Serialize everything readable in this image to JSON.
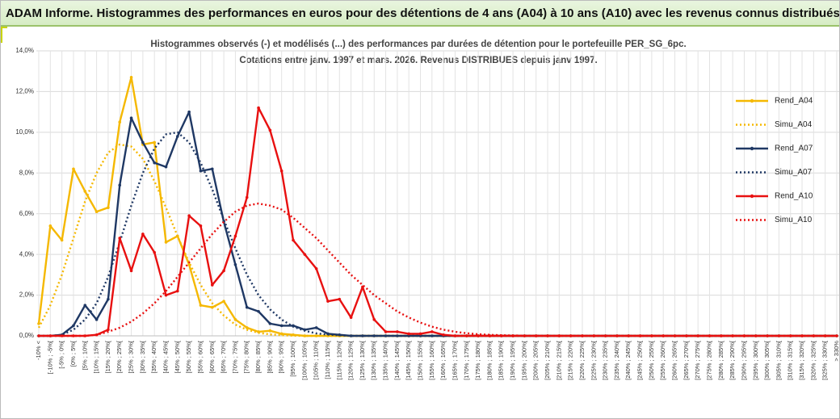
{
  "chart_data": {
    "type": "line",
    "title": "ADAM Informe. Histogrammes des performances en euros pour des détentions de 4 ans (A04) à 10 ans (A10) avec les revenus connus distribués",
    "subtitle": [
      "Histogrammes observés (-) et modélisés (...) des performances par durées de détention pour le portefeuille PER_SG_6pc.",
      "Cotations entre janv. 1997 et mars. 2026. Revenus DISTRIBUES depuis janv 1997."
    ],
    "categories": [
      "-10% <",
      "[-10% ; -5%[",
      "[-5% ; 0%[",
      "[0% ; 5%[",
      "[5% ; 10%[",
      "[10% ; 15%[",
      "[15% ; 20%[",
      "[20% ; 25%[",
      "[25% ; 30%[",
      "[30% ; 35%[",
      "[35% ; 40%[",
      "[40% ; 45%[",
      "[45% ; 50%[",
      "[50% ; 55%[",
      "[55% ; 60%[",
      "[60% ; 65%[",
      "[65% ; 70%[",
      "[70% ; 75%[",
      "[75% ; 80%[",
      "[80% ; 85%[",
      "[85% ; 90%[",
      "[90% ; 95%[",
      "[95% ; 100%[",
      "[100% ; 105%[",
      "[105% ; 110%[",
      "[110% ; 115%[",
      "[115% ; 120%[",
      "[120% ; 125%[",
      "[125% ; 130%[",
      "[130% ; 135%[",
      "[135% ; 140%[",
      "[140% ; 145%[",
      "[145% ; 150%[",
      "[150% ; 155%[",
      "[155% ; 160%[",
      "[160% ; 165%[",
      "[165% ; 170%[",
      "[170% ; 175%[",
      "[175% ; 180%[",
      "[180% ; 185%[",
      "[185% ; 190%[",
      "[190% ; 195%[",
      "[195% ; 200%[",
      "[200% ; 205%[",
      "[205% ; 210%[",
      "[210% ; 215%[",
      "[215% ; 220%[",
      "[220% ; 225%[",
      "[225% ; 230%[",
      "[230% ; 235%[",
      "[235% ; 240%[",
      "[240% ; 245%[",
      "[245% ; 250%[",
      "[250% ; 255%[",
      "[255% ; 260%[",
      "[260% ; 265%[",
      "[265% ; 270%[",
      "[270% ; 275%[",
      "[275% ; 280%[",
      "[280% ; 285%[",
      "[285% ; 290%[",
      "[290% ; 295%[",
      "[295% ; 300%[",
      "[300% ; 305%[",
      "[305% ; 310%[",
      "[310% ; 315%[",
      "[315% ; 320%[",
      "[320% ; 325%[",
      "[325% ; 330%[",
      "> 330%"
    ],
    "series": [
      {
        "name": "Rend_A04",
        "color": "#f5b800",
        "style": "solid",
        "values": [
          0.6,
          5.4,
          4.7,
          8.2,
          7.1,
          6.1,
          6.3,
          10.5,
          12.7,
          9.4,
          9.5,
          4.6,
          4.9,
          3.5,
          1.5,
          1.4,
          1.7,
          0.8,
          0.4,
          0.2,
          0.25,
          0.1,
          0.05,
          0,
          0,
          0,
          0,
          0,
          0,
          0,
          0,
          0,
          0,
          0,
          0,
          0,
          0,
          0,
          0,
          0,
          0,
          0,
          0,
          0,
          0,
          0,
          0,
          0,
          0,
          0,
          0,
          0,
          0,
          0,
          0,
          0,
          0,
          0,
          0,
          0,
          0,
          0,
          0,
          0,
          0,
          0,
          0,
          0,
          0,
          0
        ]
      },
      {
        "name": "Simu_A04",
        "color": "#f5b800",
        "style": "dotted",
        "values": [
          0.4,
          1.5,
          3.0,
          4.8,
          6.6,
          8.0,
          9.0,
          9.4,
          9.3,
          8.7,
          7.6,
          6.3,
          4.9,
          3.6,
          2.5,
          1.6,
          1.0,
          0.55,
          0.3,
          0.15,
          0.07,
          0.03,
          0.01,
          0,
          0,
          0,
          0,
          0,
          0,
          0,
          0,
          0,
          0,
          0,
          0,
          0,
          0,
          0,
          0,
          0,
          0,
          0,
          0,
          0,
          0,
          0,
          0,
          0,
          0,
          0,
          0,
          0,
          0,
          0,
          0,
          0,
          0,
          0,
          0,
          0,
          0,
          0,
          0,
          0,
          0,
          0,
          0,
          0,
          0,
          0
        ]
      },
      {
        "name": "Rend_A07",
        "color": "#1f3864",
        "style": "solid",
        "values": [
          0,
          0,
          0.05,
          0.5,
          1.5,
          0.8,
          1.8,
          7.4,
          10.7,
          9.5,
          8.5,
          8.3,
          9.8,
          11.0,
          8.1,
          8.2,
          5.6,
          3.5,
          1.4,
          1.2,
          0.6,
          0.5,
          0.5,
          0.3,
          0.4,
          0.1,
          0.05,
          0,
          0,
          0,
          0,
          0,
          0,
          0,
          0,
          0,
          0,
          0,
          0,
          0,
          0,
          0,
          0,
          0,
          0,
          0,
          0,
          0,
          0,
          0,
          0,
          0,
          0,
          0,
          0,
          0,
          0,
          0,
          0,
          0,
          0,
          0,
          0,
          0,
          0,
          0,
          0,
          0,
          0,
          0
        ]
      },
      {
        "name": "Simu_A07",
        "color": "#1f3864",
        "style": "dotted",
        "values": [
          0,
          0,
          0.05,
          0.3,
          0.8,
          1.6,
          2.9,
          4.6,
          6.4,
          8.0,
          9.2,
          9.9,
          10.0,
          9.5,
          8.5,
          7.2,
          5.7,
          4.3,
          3.0,
          2.0,
          1.3,
          0.8,
          0.45,
          0.25,
          0.12,
          0.06,
          0.03,
          0,
          0,
          0,
          0,
          0,
          0,
          0,
          0,
          0,
          0,
          0,
          0,
          0,
          0,
          0,
          0,
          0,
          0,
          0,
          0,
          0,
          0,
          0,
          0,
          0,
          0,
          0,
          0,
          0,
          0,
          0,
          0,
          0,
          0,
          0,
          0,
          0,
          0,
          0,
          0,
          0,
          0,
          0
        ]
      },
      {
        "name": "Rend_A10",
        "color": "#e81010",
        "style": "solid",
        "values": [
          0,
          0,
          0,
          0,
          0,
          0.05,
          0.3,
          4.8,
          3.2,
          5.0,
          4.1,
          2.0,
          2.2,
          5.9,
          5.4,
          2.5,
          3.2,
          4.9,
          6.8,
          11.2,
          10.1,
          8.1,
          4.7,
          4.0,
          3.3,
          1.7,
          1.8,
          0.9,
          2.4,
          0.8,
          0.2,
          0.2,
          0.1,
          0.1,
          0.2,
          0.05,
          0,
          0,
          0,
          0,
          0,
          0,
          0,
          0,
          0,
          0,
          0,
          0,
          0,
          0,
          0,
          0,
          0,
          0,
          0,
          0,
          0,
          0,
          0,
          0,
          0,
          0,
          0,
          0,
          0,
          0,
          0,
          0,
          0,
          0
        ]
      },
      {
        "name": "Simu_A10",
        "color": "#e81010",
        "style": "dotted",
        "values": [
          0,
          0,
          0,
          0,
          0,
          0.05,
          0.2,
          0.4,
          0.7,
          1.1,
          1.6,
          2.2,
          2.9,
          3.6,
          4.3,
          5.0,
          5.6,
          6.1,
          6.4,
          6.5,
          6.4,
          6.2,
          5.8,
          5.3,
          4.8,
          4.2,
          3.6,
          3.0,
          2.5,
          2.0,
          1.6,
          1.2,
          0.9,
          0.65,
          0.45,
          0.3,
          0.2,
          0.13,
          0.08,
          0.05,
          0.03,
          0.02,
          0.01,
          0,
          0,
          0,
          0,
          0,
          0,
          0,
          0,
          0,
          0,
          0,
          0,
          0,
          0,
          0,
          0,
          0,
          0,
          0,
          0,
          0,
          0,
          0,
          0,
          0,
          0,
          0
        ]
      }
    ],
    "ylim": [
      0,
      14
    ],
    "yticks": [
      {
        "value": 0,
        "label": "0,0%"
      },
      {
        "value": 2,
        "label": "2,0%"
      },
      {
        "value": 4,
        "label": "4,0%"
      },
      {
        "value": 6,
        "label": "6,0%"
      },
      {
        "value": 8,
        "label": "8,0%"
      },
      {
        "value": 10,
        "label": "10,0%"
      },
      {
        "value": 12,
        "label": "12,0%"
      },
      {
        "value": 14,
        "label": "14,0%"
      }
    ],
    "grid": true,
    "legend": "right"
  }
}
